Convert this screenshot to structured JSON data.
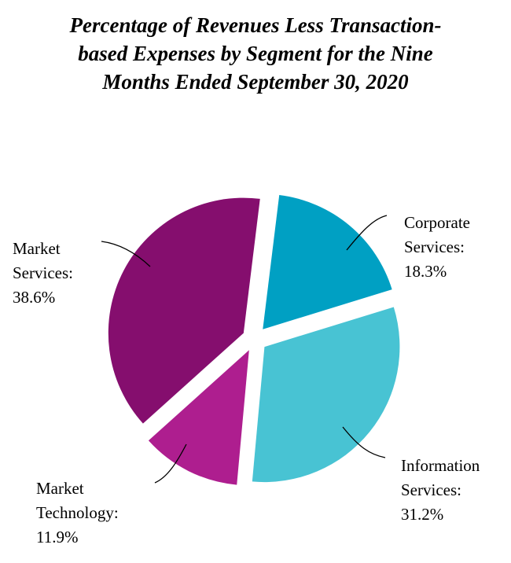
{
  "chart_data": {
    "type": "pie",
    "title_lines": [
      "Percentage of Revenues Less Transaction-",
      "based Expenses by Segment for the Nine",
      "Months Ended September 30, 2020"
    ],
    "slices": [
      {
        "name": "Corporate Services",
        "label_lines": [
          "Corporate",
          "Services:"
        ],
        "value": 18.3,
        "value_label": "18.3%",
        "color": "#00A0C3"
      },
      {
        "name": "Information Services",
        "label_lines": [
          "Information",
          "Services:"
        ],
        "value": 31.2,
        "value_label": "31.2%",
        "color": "#48C3D3"
      },
      {
        "name": "Market Technology",
        "label_lines": [
          "Market",
          "Technology:"
        ],
        "value": 11.9,
        "value_label": "11.9%",
        "color": "#AE1E8F"
      },
      {
        "name": "Market Services",
        "label_lines": [
          "Market",
          "Services:"
        ],
        "value": 38.6,
        "value_label": "38.6%",
        "color": "#850E6E"
      }
    ]
  }
}
